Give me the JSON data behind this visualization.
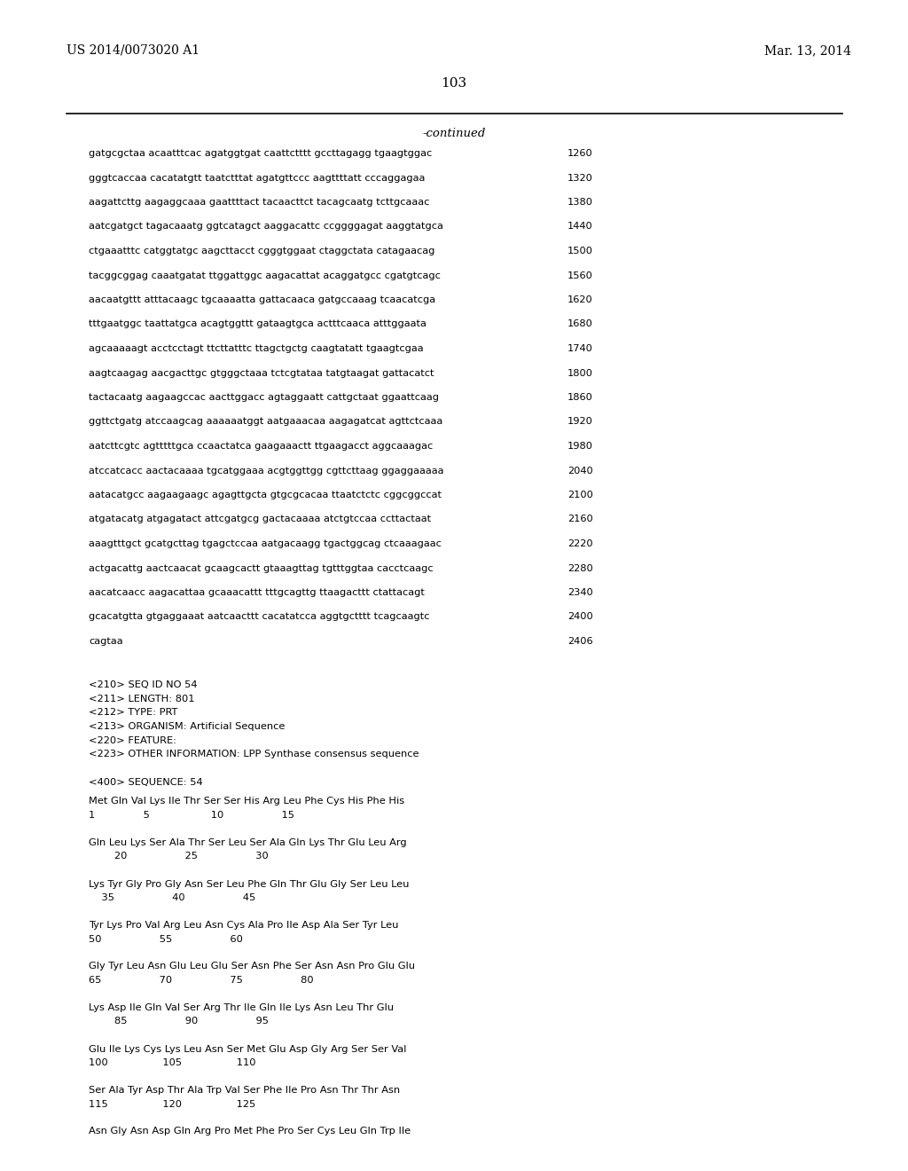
{
  "header_left": "US 2014/0073020 A1",
  "header_right": "Mar. 13, 2014",
  "page_number": "103",
  "continued_label": "-continued",
  "background_color": "#ffffff",
  "text_color": "#000000",
  "sequence_lines": [
    [
      "gatgcgctaa acaatttcac agatggtgat caattctttt gccttagagg tgaagtggac",
      "1260"
    ],
    [
      "gggtcaccaa cacatatgtt taatctttat agatgttccc aagttttatt cccaggagaa",
      "1320"
    ],
    [
      "aagattcttg aagaggcaaa gaattttact tacaacttct tacagcaatg tcttgcaaac",
      "1380"
    ],
    [
      "aatcgatgct tagacaaatg ggtcatagct aaggacattc ccggggagat aaggtatgca",
      "1440"
    ],
    [
      "ctgaaatttc catggtatgc aagcttacct cgggtggaat ctaggctata catagaacag",
      "1500"
    ],
    [
      "tacggcggag caaatgatat ttggattggc aagacattat acaggatgcc cgatgtcagc",
      "1560"
    ],
    [
      "aacaatgttt atttacaagc tgcaaaatta gattacaaca gatgccaaag tcaacatcga",
      "1620"
    ],
    [
      "tttgaatggc taattatgca acagtggttt gataagtgca actttcaaca atttggaata",
      "1680"
    ],
    [
      "agcaaaaagt acctcctagt ttcttatttc ttagctgctg caagtatatt tgaagtcgaa",
      "1740"
    ],
    [
      "aagtcaagag aacgacttgc gtgggctaaa tctcgtataa tatgtaagat gattacatct",
      "1800"
    ],
    [
      "tactacaatg aagaagccac aacttggacc agtaggaatt cattgctaat ggaattcaag",
      "1860"
    ],
    [
      "ggttctgatg atccaagcag aaaaaatggt aatgaaacaa aagagatcat agttctcaaa",
      "1920"
    ],
    [
      "aatcttcgtc agtttttgca ccaactatca gaagaaactt ttgaagacct aggcaaagac",
      "1980"
    ],
    [
      "atccatcacc aactacaaaa tgcatggaaa acgtggttgg cgttcttaag ggaggaaaaa",
      "2040"
    ],
    [
      "aatacatgcc aagaagaagc agagttgcta gtgcgcacaa ttaatctctc cggcggccat",
      "2100"
    ],
    [
      "atgatacatg atgagatact attcgatgcg gactacaaaa atctgtccaa ccttactaat",
      "2160"
    ],
    [
      "aaagtttgct gcatgcttag tgagctccaa aatgacaagg tgactggcag ctcaaagaac",
      "2220"
    ],
    [
      "actgacattg aactcaacat gcaagcactt gtaaagttag tgtttggtaa cacctcaagc",
      "2280"
    ],
    [
      "aacatcaacc aagacattaa gcaaacattt tttgcagttg ttaagacttt ctattacagt",
      "2340"
    ],
    [
      "gcacatgtta gtgaggaaat aatcaacttt cacatatcca aggtgctttt tcagcaagtc",
      "2400"
    ],
    [
      "cagtaa",
      "2406"
    ]
  ],
  "metadata_lines": [
    "<210> SEQ ID NO 54",
    "<211> LENGTH: 801",
    "<212> TYPE: PRT",
    "<213> ORGANISM: Artificial Sequence",
    "<220> FEATURE:",
    "<223> OTHER INFORMATION: LPP Synthase consensus sequence"
  ],
  "sequence400_label": "<400> SEQUENCE: 54",
  "protein_lines": [
    "Met Gln Val Lys Ile Thr Ser Ser His Arg Leu Phe Cys His Phe His",
    "1               5                   10                  15",
    "",
    "Gln Leu Lys Ser Ala Thr Ser Leu Ser Ala Gln Lys Thr Glu Leu Arg",
    "        20                  25                  30",
    "",
    "Lys Tyr Gly Pro Gly Asn Ser Leu Phe Gln Thr Glu Gly Ser Leu Leu",
    "    35                  40                  45",
    "",
    "Tyr Lys Pro Val Arg Leu Asn Cys Ala Pro Ile Asp Ala Ser Tyr Leu",
    "50                  55                  60",
    "",
    "Gly Tyr Leu Asn Glu Leu Glu Ser Asn Phe Ser Asn Asn Pro Glu Glu",
    "65                  70                  75                  80",
    "",
    "Lys Asp Ile Gln Val Ser Arg Thr Ile Gln Ile Lys Asn Leu Thr Glu",
    "        85                  90                  95",
    "",
    "Glu Ile Lys Cys Lys Leu Asn Ser Met Glu Asp Gly Arg Ser Ser Val",
    "100                 105                 110",
    "",
    "Ser Ala Tyr Asp Thr Ala Trp Val Ser Phe Ile Pro Asn Thr Thr Asn",
    "115                 120                 125",
    "",
    "Asn Gly Asn Asp Gln Arg Pro Met Phe Pro Ser Cys Leu Gln Trp Ile"
  ]
}
